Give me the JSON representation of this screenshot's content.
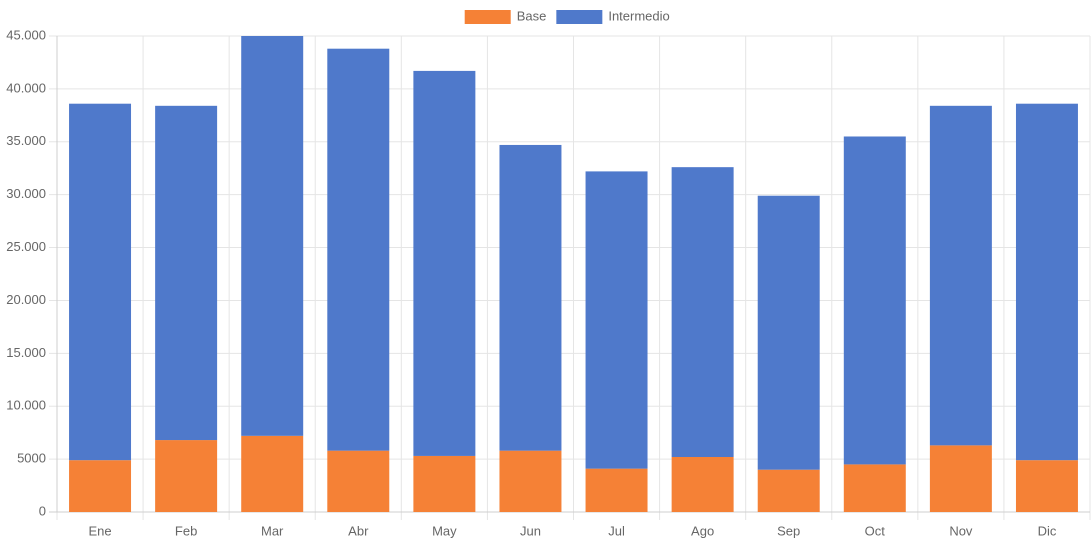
{
  "chart_data": {
    "type": "stacked_bar",
    "categories": [
      "Ene",
      "Feb",
      "Mar",
      "Abr",
      "May",
      "Jun",
      "Jul",
      "Ago",
      "Sep",
      "Oct",
      "Nov",
      "Dic"
    ],
    "series": [
      {
        "name": "Base",
        "color": "#f58136",
        "values": [
          4900,
          6800,
          7200,
          5800,
          5300,
          5800,
          4100,
          5200,
          4000,
          4500,
          6300,
          4900
        ]
      },
      {
        "name": "Intermedio",
        "color": "#4f79cb",
        "values": [
          33700,
          31600,
          37800,
          38000,
          36400,
          28900,
          28100,
          27400,
          25900,
          31000,
          32100,
          33700
        ]
      }
    ],
    "ylim": [
      0,
      45000
    ],
    "yticks": [
      0,
      5000,
      {
        "value": 10000,
        "label": "10.000"
      },
      {
        "value": 15000,
        "label": "15.000"
      },
      {
        "value": 20000,
        "label": "20.000"
      },
      {
        "value": 25000,
        "label": "25.000"
      },
      {
        "value": 30000,
        "label": "30.000"
      },
      {
        "value": 35000,
        "label": "35.000"
      },
      {
        "value": 40000,
        "label": "40.000"
      },
      {
        "value": 45000,
        "label": "45.000"
      }
    ],
    "grid": true,
    "legend": "top"
  }
}
